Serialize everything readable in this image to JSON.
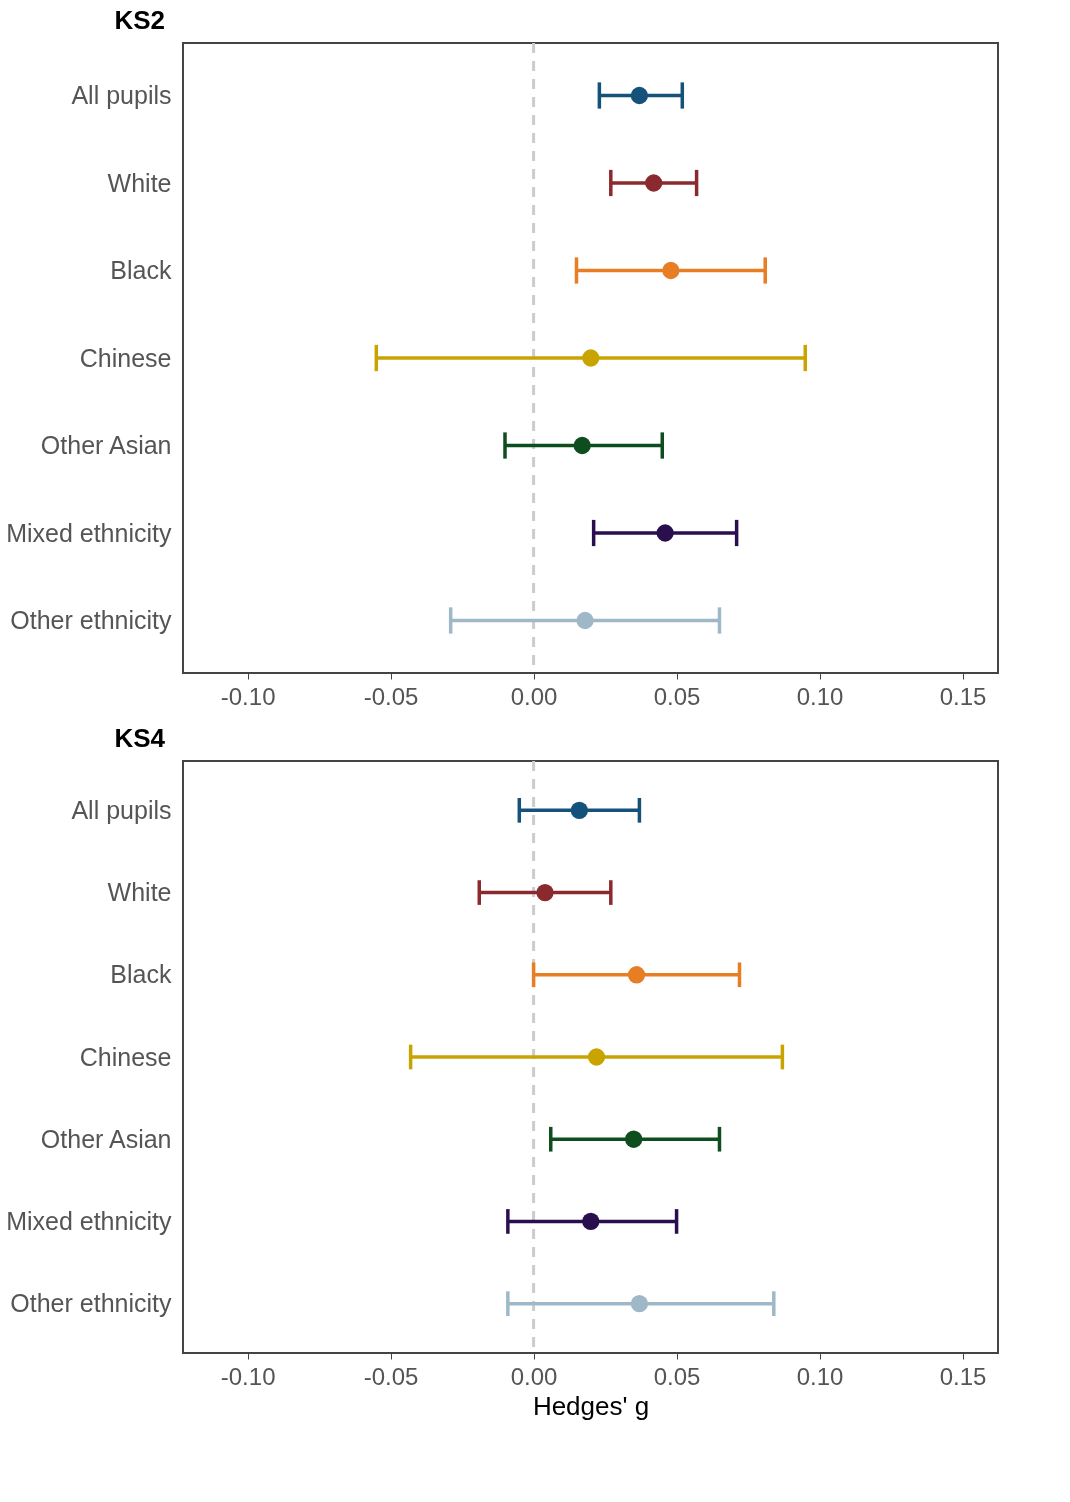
{
  "chart_data": [
    {
      "type": "scatter",
      "title": "KS2",
      "orientation": "horizontal",
      "marker": "circle",
      "legend": false,
      "grid": false,
      "categories": [
        "All pupils",
        "White",
        "Black",
        "Chinese",
        "Other Asian",
        "Mixed ethnicity",
        "Other ethnicity"
      ],
      "values": [
        0.037,
        0.042,
        0.048,
        0.02,
        0.017,
        0.046,
        0.018
      ],
      "errors": [
        [
          0.023,
          0.052
        ],
        [
          0.027,
          0.057
        ],
        [
          0.015,
          0.081
        ],
        [
          -0.055,
          0.095
        ],
        [
          -0.01,
          0.045
        ],
        [
          0.021,
          0.071
        ],
        [
          -0.029,
          0.065
        ]
      ],
      "colors": [
        "#15527a",
        "#8b2a2e",
        "#e87e24",
        "#c9a400",
        "#0e4d1e",
        "#2a0f4f",
        "#9fb8c8"
      ],
      "xlim": [
        -0.1226,
        0.1624
      ],
      "xticks": [
        {
          "value": -0.1,
          "label": "-0.10"
        },
        {
          "value": -0.05,
          "label": "-0.05"
        },
        {
          "value": 0,
          "label": "0.00"
        },
        {
          "value": 0.05,
          "label": "0.05"
        },
        {
          "value": 0.1,
          "label": "0.10"
        },
        {
          "value": 0.15,
          "label": "0.15"
        }
      ],
      "ref_lines": [
        {
          "axis": "x",
          "value": 0,
          "color": "#cccccc",
          "line_style": "dashed"
        }
      ]
    },
    {
      "type": "scatter",
      "title": "KS4",
      "xlabel": "Hedges' g",
      "orientation": "horizontal",
      "marker": "circle",
      "legend": false,
      "grid": false,
      "categories": [
        "All pupils",
        "White",
        "Black",
        "Chinese",
        "Other Asian",
        "Mixed ethnicity",
        "Other ethnicity"
      ],
      "values": [
        0.016,
        0.004,
        0.036,
        0.022,
        0.035,
        0.02,
        0.037
      ],
      "errors": [
        [
          -0.005,
          0.037
        ],
        [
          -0.019,
          0.027
        ],
        [
          0.0,
          0.072
        ],
        [
          -0.043,
          0.087
        ],
        [
          0.006,
          0.065
        ],
        [
          -0.009,
          0.05
        ],
        [
          -0.009,
          0.084
        ]
      ],
      "colors": [
        "#15527a",
        "#8b2a2e",
        "#e87e24",
        "#c9a400",
        "#0e4d1e",
        "#2a0f4f",
        "#9fb8c8"
      ],
      "xlim": [
        -0.1226,
        0.1624
      ],
      "xticks": [
        {
          "value": -0.1,
          "label": "-0.10"
        },
        {
          "value": -0.05,
          "label": "-0.05"
        },
        {
          "value": 0,
          "label": "0.00"
        },
        {
          "value": 0.05,
          "label": "0.05"
        },
        {
          "value": 0.1,
          "label": "0.10"
        },
        {
          "value": 0.15,
          "label": "0.15"
        }
      ],
      "ref_lines": [
        {
          "axis": "x",
          "value": 0,
          "color": "#cccccc",
          "line_style": "dashed"
        }
      ]
    }
  ]
}
